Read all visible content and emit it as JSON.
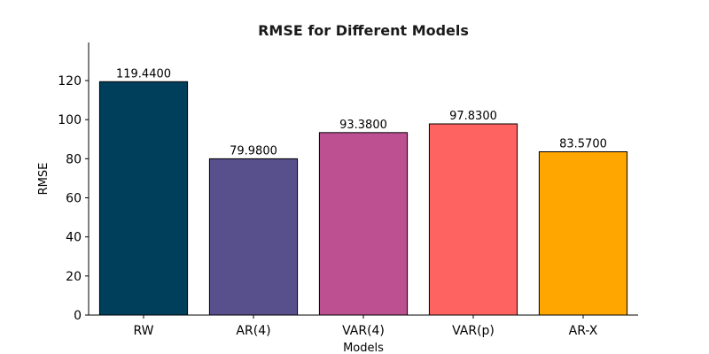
{
  "chart_data": {
    "type": "bar",
    "title": "RMSE for Different Models",
    "xlabel": "Models",
    "ylabel": "RMSE",
    "categories": [
      "RW",
      "AR(4)",
      "VAR(4)",
      "VAR(p)",
      "AR-X"
    ],
    "values": [
      119.44,
      79.98,
      93.38,
      97.83,
      83.57
    ],
    "value_labels": [
      "119.4400",
      "79.9800",
      "93.3800",
      "97.8300",
      "83.5700"
    ],
    "colors": [
      "#003f5c",
      "#58508d",
      "#bc5090",
      "#ff6361",
      "#ffa600"
    ],
    "ylim": [
      0,
      139.5
    ],
    "yticks": [
      0,
      20,
      40,
      60,
      80,
      100,
      120
    ],
    "grid": false,
    "legend": "none"
  }
}
